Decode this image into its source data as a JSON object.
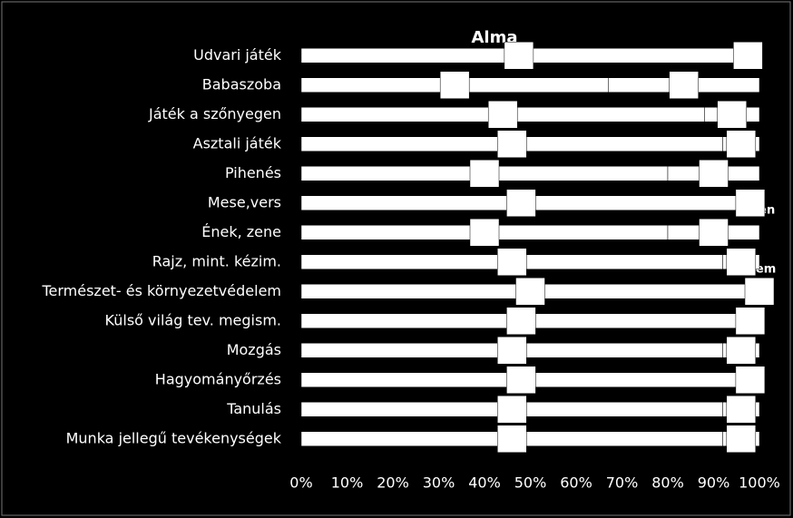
{
  "chart_data": {
    "type": "stacked_bar_horizontal",
    "title": "Alma",
    "categories": [
      "Udvari játék",
      "Babaszoba",
      "Játék a szőnyegen ",
      "Asztali játék",
      "Pihenés",
      "Mese,vers",
      "Ének, zene",
      "Rajz, mint. kézim.",
      "Természet- és környezetvédelem",
      "Külső világ tev. megism.",
      "Mozgás",
      "Hagyományőrzés",
      "Tanulás ",
      "Munka jellegű tevékenységek"
    ],
    "series": [
      {
        "name": "Igen",
        "color": "#ffffff",
        "values": [
          95,
          67,
          88,
          92,
          80,
          96,
          80,
          92,
          100,
          96,
          92,
          96,
          92,
          92
        ]
      },
      {
        "name": "Nem",
        "color": "#ffffff",
        "values": [
          5,
          33,
          12,
          8,
          20,
          4,
          20,
          8,
          0,
          4,
          8,
          4,
          8,
          8
        ]
      }
    ],
    "xlim": [
      0,
      100
    ],
    "xticks": [
      {
        "value": 0,
        "label": "0%"
      },
      {
        "value": 10,
        "label": "10%"
      },
      {
        "value": 20,
        "label": "20%"
      },
      {
        "value": 30,
        "label": "30%"
      },
      {
        "value": 40,
        "label": "40%"
      },
      {
        "value": 50,
        "label": "50%"
      },
      {
        "value": 60,
        "label": "60%"
      },
      {
        "value": 70,
        "label": "70%"
      },
      {
        "value": 80,
        "label": "80%"
      },
      {
        "value": 90,
        "label": "90%"
      },
      {
        "value": 100,
        "label": "100%"
      }
    ]
  }
}
